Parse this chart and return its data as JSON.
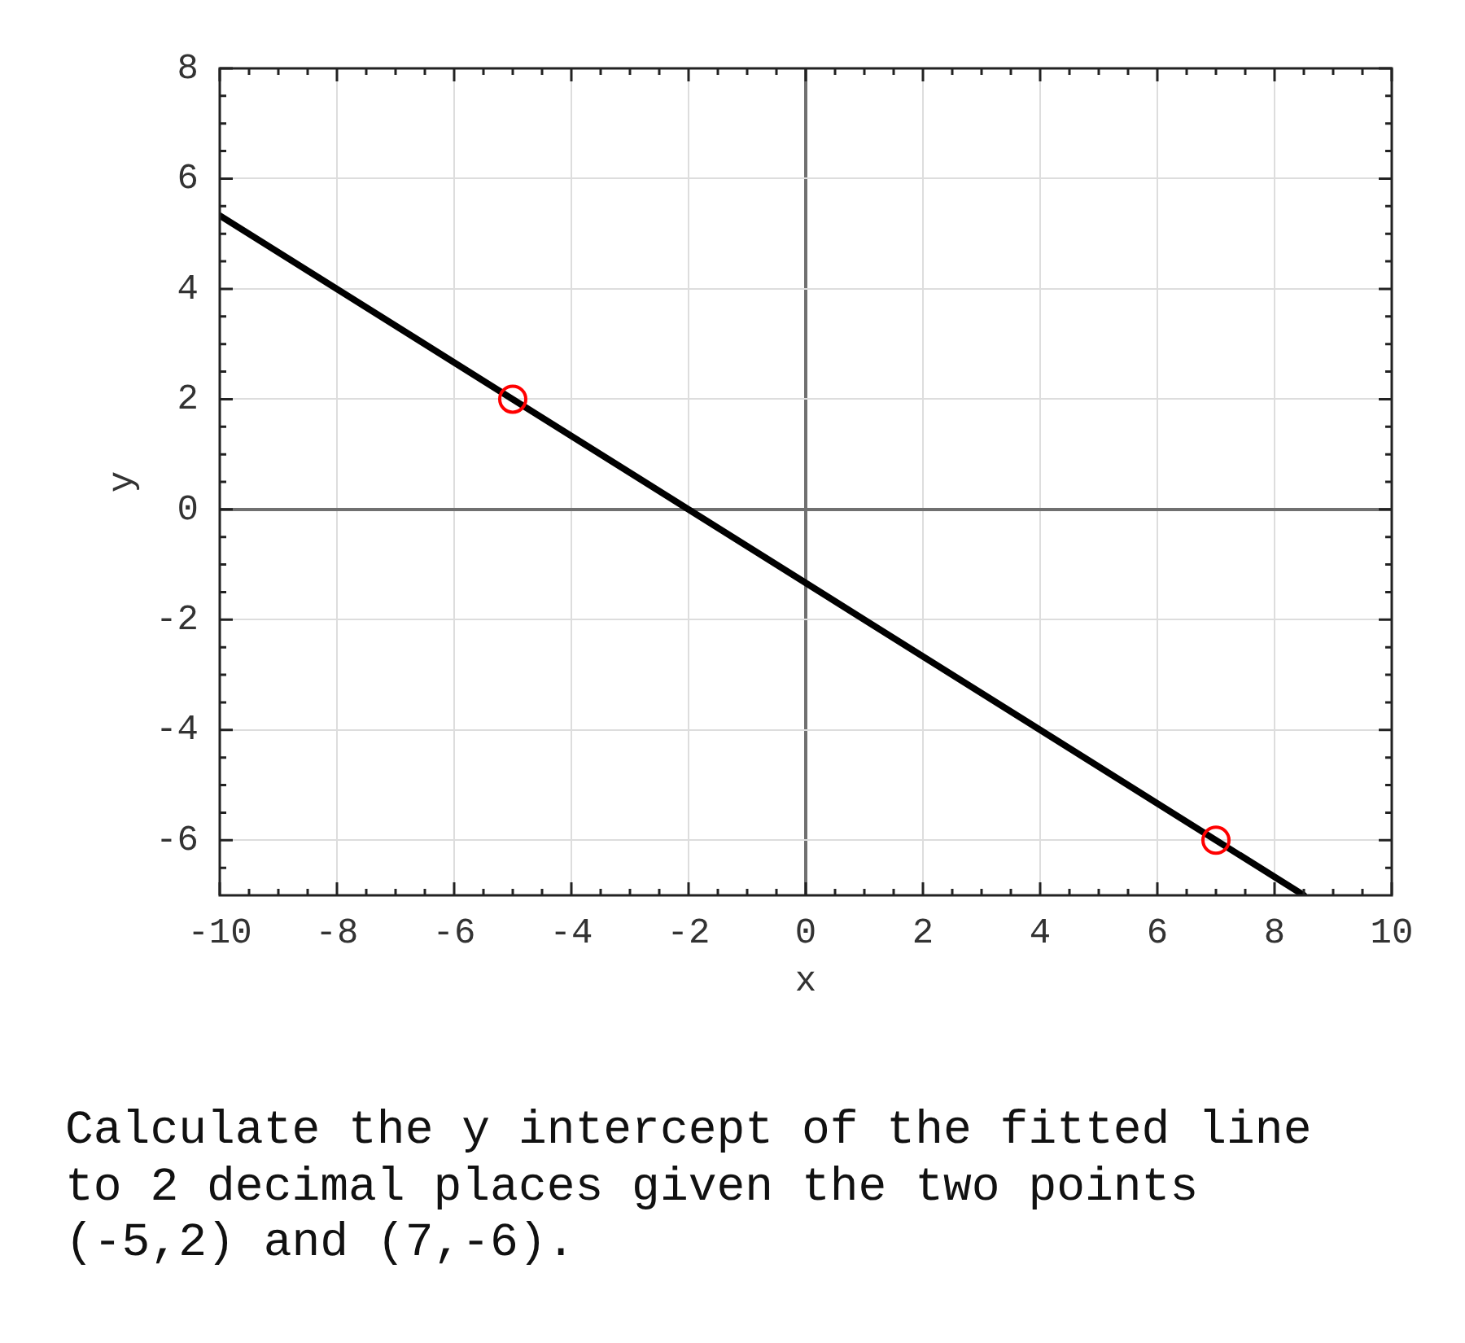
{
  "chart_data": {
    "type": "line",
    "xlabel": "x",
    "ylabel": "y",
    "xlim": [
      -10,
      10
    ],
    "ylim": [
      -7,
      8
    ],
    "xticks": [
      -10,
      {
        "value": -9.5,
        "label": null
      },
      {
        "value": -9,
        "label": null
      },
      {
        "value": -8.5,
        "label": null
      },
      -8,
      {
        "value": -7.5,
        "label": null
      },
      {
        "value": -7,
        "label": null
      },
      {
        "value": -6.5,
        "label": null
      },
      -6,
      {
        "value": -5.5,
        "label": null
      },
      {
        "value": -5,
        "label": null
      },
      {
        "value": -4.5,
        "label": null
      },
      -4,
      {
        "value": -3.5,
        "label": null
      },
      {
        "value": -3,
        "label": null
      },
      {
        "value": -2.5,
        "label": null
      },
      -2,
      {
        "value": -1.5,
        "label": null
      },
      {
        "value": -1,
        "label": null
      },
      {
        "value": -0.5,
        "label": null
      },
      0,
      {
        "value": 0.5,
        "label": null
      },
      {
        "value": 1,
        "label": null
      },
      {
        "value": 1.5,
        "label": null
      },
      2,
      {
        "value": 2.5,
        "label": null
      },
      {
        "value": 3,
        "label": null
      },
      {
        "value": 3.5,
        "label": null
      },
      4,
      {
        "value": 4.5,
        "label": null
      },
      {
        "value": 5,
        "label": null
      },
      {
        "value": 5.5,
        "label": null
      },
      6,
      {
        "value": 6.5,
        "label": null
      },
      {
        "value": 7,
        "label": null
      },
      {
        "value": 7.5,
        "label": null
      },
      8,
      {
        "value": 8.5,
        "label": null
      },
      {
        "value": 9,
        "label": null
      },
      {
        "value": 9.5,
        "label": null
      },
      10
    ],
    "yticks": [
      {
        "value": -6.5,
        "label": null
      },
      -6,
      {
        "value": -5.5,
        "label": null
      },
      {
        "value": -5,
        "label": null
      },
      {
        "value": -4.5,
        "label": null
      },
      -4,
      {
        "value": -3.5,
        "label": null
      },
      {
        "value": -3,
        "label": null
      },
      {
        "value": -2.5,
        "label": null
      },
      -2,
      {
        "value": -1.5,
        "label": null
      },
      {
        "value": -1,
        "label": null
      },
      {
        "value": -0.5,
        "label": null
      },
      0,
      {
        "value": 0.5,
        "label": null
      },
      {
        "value": 1,
        "label": null
      },
      {
        "value": 1.5,
        "label": null
      },
      2,
      {
        "value": 2.5,
        "label": null
      },
      {
        "value": 3,
        "label": null
      },
      {
        "value": 3.5,
        "label": null
      },
      4,
      {
        "value": 4.5,
        "label": null
      },
      {
        "value": 5,
        "label": null
      },
      {
        "value": 5.5,
        "label": null
      },
      6,
      {
        "value": 6.5,
        "label": null
      },
      {
        "value": 7,
        "label": null
      },
      {
        "value": 7.5,
        "label": null
      },
      8
    ],
    "grid": true,
    "series": [
      {
        "type": "line",
        "color": "#000000",
        "x": [
          -10,
          8.5
        ],
        "values": [
          5.33,
          -7
        ],
        "marker": "none",
        "line_style": "solid"
      },
      {
        "type": "scatter",
        "color": "#ff0000",
        "x": [
          -5,
          7
        ],
        "values": [
          2,
          -6
        ],
        "marker": "circle"
      }
    ],
    "annotations": [
      "Calculate the y intercept of the fitted line to 2 decimal places given the two points (-5,2) and (7,-6)."
    ]
  }
}
